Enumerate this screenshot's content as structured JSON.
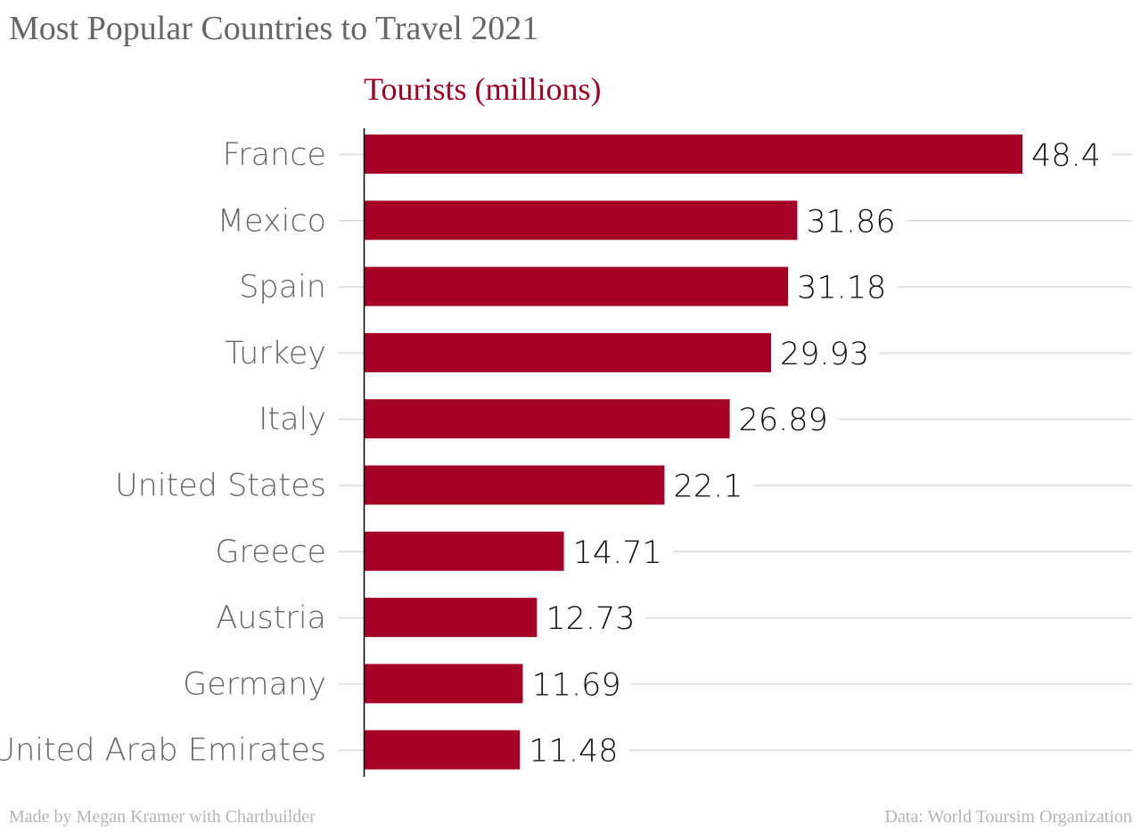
{
  "page": {
    "title": "Most Popular Countries to Travel 2021"
  },
  "footer": {
    "credit": "Made by Megan Kramer with Chartbuilder",
    "source": "Data: World Toursim Organization"
  },
  "chart_data": {
    "type": "bar",
    "orientation": "horizontal",
    "title": "Most Popular Countries to Travel 2021",
    "series_label": "Tourists (millions)",
    "categories": [
      "France",
      "Mexico",
      "Spain",
      "Turkey",
      "Italy",
      "United States",
      "Greece",
      "Austria",
      "Germany",
      "United Arab Emirates"
    ],
    "values": [
      48.4,
      31.86,
      31.18,
      29.93,
      26.89,
      22.1,
      14.71,
      12.73,
      11.69,
      11.48
    ],
    "value_labels": [
      "48.4",
      "31.86",
      "31.18",
      "29.93",
      "26.89",
      "22.1",
      "14.71",
      "12.73",
      "11.69",
      "11.48"
    ],
    "xlim": [
      0,
      48.4
    ],
    "grid": true,
    "bar_color": "#a50026",
    "label_color": "#a50026"
  }
}
